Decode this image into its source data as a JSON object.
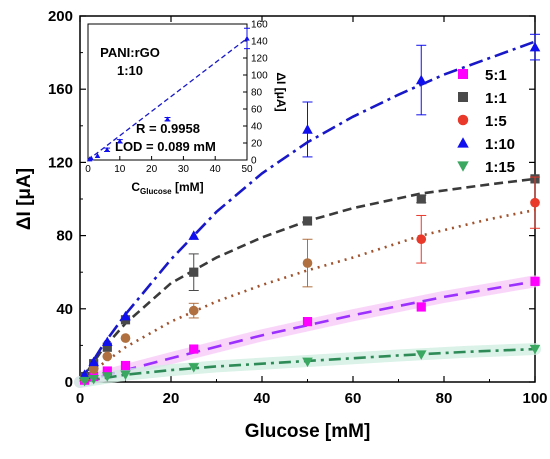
{
  "chart_data": [
    {
      "type": "scatter",
      "xlabel": "Glucose [mM]",
      "ylabel": "ΔI [μA]",
      "xlim": [
        0,
        100
      ],
      "ylim": [
        0,
        200
      ],
      "x_ticks": [
        "0",
        "20",
        "40",
        "60",
        "80",
        "100"
      ],
      "y_ticks": [
        "0",
        "40",
        "80",
        "120",
        "160",
        "200"
      ],
      "legend_position": "right",
      "series": [
        {
          "name": "5:1",
          "marker": "square",
          "color": "#ff00ff",
          "line_color": "#9b30ff",
          "band_color": "#f7c8f7",
          "x": [
            1,
            3,
            6,
            10,
            25,
            50,
            75,
            100
          ],
          "y": [
            1,
            3,
            6,
            9,
            18,
            33,
            41,
            55
          ],
          "err": [
            0,
            0,
            0,
            0,
            0,
            0,
            0,
            0
          ],
          "fit": [
            [
              0,
              0
            ],
            [
              20,
              13
            ],
            [
              40,
              25.5
            ],
            [
              60,
              36.5
            ],
            [
              80,
              46.5
            ],
            [
              100,
              55
            ]
          ]
        },
        {
          "name": "1:1",
          "marker": "square",
          "color": "#4a4a4a",
          "line_color": "#3a3a3a",
          "x": [
            1,
            3,
            6,
            10,
            25,
            50,
            75,
            100
          ],
          "y": [
            3,
            10,
            19,
            34,
            60,
            88,
            100,
            111
          ],
          "err": [
            0,
            0,
            0,
            0,
            10,
            0,
            2,
            0
          ],
          "fit": [
            [
              0,
              0
            ],
            [
              5,
              18
            ],
            [
              10,
              32
            ],
            [
              20,
              54
            ],
            [
              30,
              68
            ],
            [
              40,
              79
            ],
            [
              50,
              88
            ],
            [
              60,
              95
            ],
            [
              75,
              103
            ],
            [
              90,
              108
            ],
            [
              100,
              111
            ]
          ]
        },
        {
          "name": "1:5",
          "marker": "circle",
          "color": "#e8392b",
          "marker_colors": [
            "#b07040",
            "#b07040",
            "#b07040",
            "#b07040",
            "#b07040",
            "#b07040",
            "#e8392b",
            "#e8392b"
          ],
          "line_color": "#a0522d",
          "x": [
            1,
            3,
            6,
            10,
            25,
            50,
            75,
            100
          ],
          "y": [
            2,
            7,
            14,
            24,
            39,
            65,
            78,
            98
          ],
          "err": [
            0,
            0,
            0,
            0,
            4,
            13,
            13,
            14
          ],
          "fit": [
            [
              0,
              0
            ],
            [
              5,
              10
            ],
            [
              10,
              19
            ],
            [
              20,
              33
            ],
            [
              30,
              44
            ],
            [
              40,
              53
            ],
            [
              50,
              61
            ],
            [
              60,
              68
            ],
            [
              75,
              80
            ],
            [
              90,
              89
            ],
            [
              100,
              94
            ]
          ]
        },
        {
          "name": "1:10",
          "marker": "triangle-up",
          "color": "#1010ee",
          "line_color": "#1818c8",
          "x": [
            1,
            3,
            6,
            10,
            25,
            50,
            75,
            100
          ],
          "y": [
            4,
            11,
            22,
            36,
            80,
            138,
            165,
            183
          ],
          "err": [
            0,
            0,
            0,
            0,
            0,
            15,
            19,
            7
          ],
          "fit": [
            [
              0,
              0
            ],
            [
              5,
              20
            ],
            [
              10,
              37
            ],
            [
              20,
              67
            ],
            [
              30,
              93
            ],
            [
              40,
              114
            ],
            [
              50,
              131
            ],
            [
              60,
              145
            ],
            [
              70,
              157
            ],
            [
              80,
              168
            ],
            [
              90,
              177
            ],
            [
              100,
              186
            ]
          ]
        },
        {
          "name": "1:15",
          "marker": "triangle-down",
          "color": "#3aa860",
          "line_color": "#2e8b57",
          "band_color": "#cdeee0",
          "x": [
            1,
            3,
            6,
            10,
            25,
            50,
            75,
            100
          ],
          "y": [
            0.5,
            1.5,
            3,
            4,
            8,
            11,
            15,
            18
          ],
          "err": [
            0,
            0,
            0,
            0,
            0,
            0,
            0,
            0
          ],
          "fit": [
            [
              0,
              0
            ],
            [
              10,
              4
            ],
            [
              20,
              6.5
            ],
            [
              30,
              8.5
            ],
            [
              50,
              11.5
            ],
            [
              70,
              14.5
            ],
            [
              85,
              16.5
            ],
            [
              100,
              18
            ]
          ]
        }
      ]
    },
    {
      "type": "scatter",
      "title": "PANI:rGO\n1:10",
      "xlabel": "C",
      "xlabel_sub": "Glucose",
      "xlabel_unit": " [mM]",
      "ylabel": "ΔI [μA]",
      "xlim": [
        0,
        50
      ],
      "ylim": [
        0,
        160
      ],
      "x_ticks": [
        "0",
        "10",
        "20",
        "30",
        "40",
        "50"
      ],
      "y_ticks": [
        "0",
        "20",
        "40",
        "60",
        "80",
        "100",
        "120",
        "140",
        "160"
      ],
      "annotations": [
        "R = 0.9958",
        "LOD = 0.089 mM"
      ],
      "series": [
        {
          "marker": "triangle-up",
          "color": "#1010ee",
          "x": [
            0.5,
            1,
            3,
            6,
            10,
            25,
            50
          ],
          "y": [
            1,
            2,
            5,
            12,
            22,
            48,
            143
          ],
          "err": [
            0,
            0,
            0,
            2,
            2,
            2,
            12
          ],
          "fit": [
            [
              0,
              0
            ],
            [
              50,
              143
            ]
          ]
        }
      ]
    }
  ]
}
